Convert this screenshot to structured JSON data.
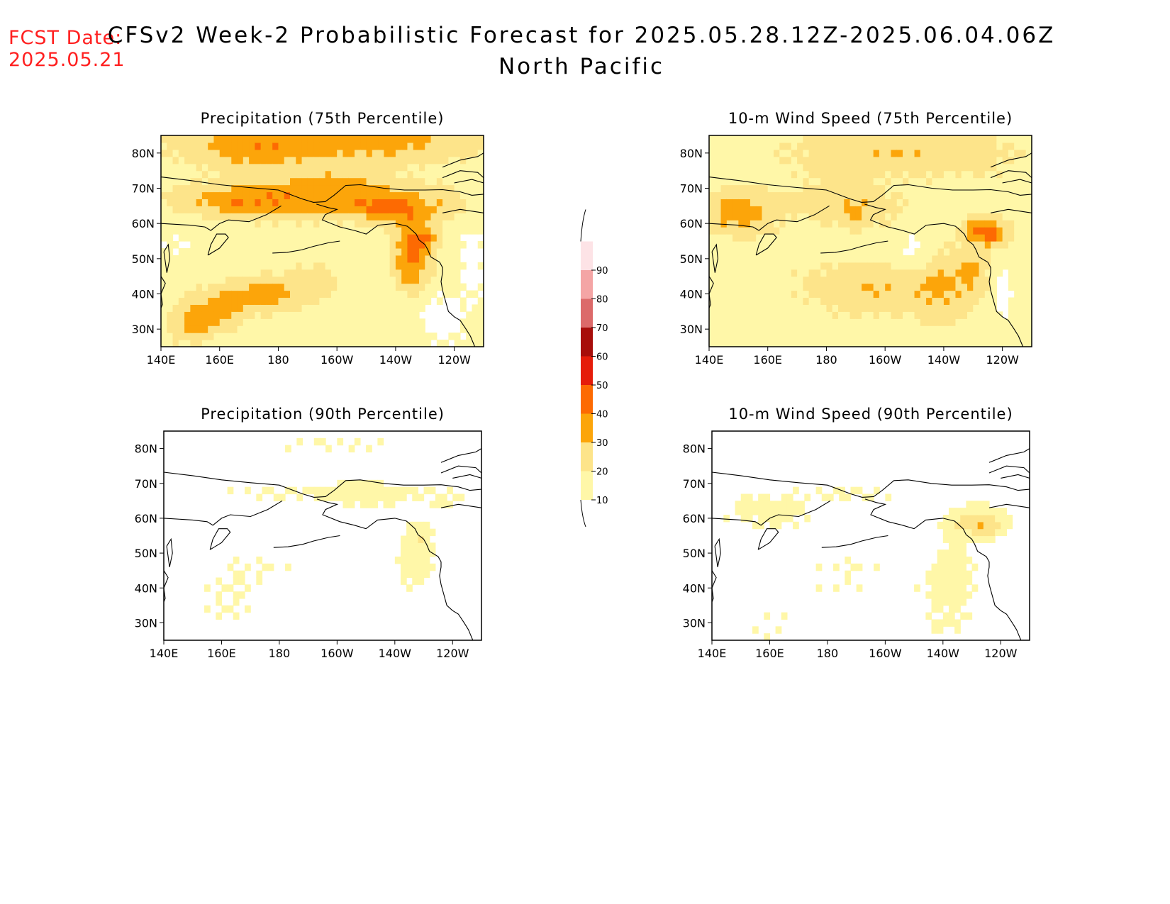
{
  "header": {
    "fcst_label": "FCST Date:",
    "fcst_date": "2025.05.21",
    "title": "CFSv2 Week-2 Probabilistic Forecast for 2025.05.28.12Z-2025.06.04.06Z",
    "subtitle": "North Pacific"
  },
  "panels": [
    {
      "title": "Precipitation (75th Percentile)",
      "field": "precip75"
    },
    {
      "title": "10-m Wind Speed (75th Percentile)",
      "field": "wind75"
    },
    {
      "title": "Precipitation (90th Percentile)",
      "field": "precip90"
    },
    {
      "title": "10-m Wind Speed (90th Percentile)",
      "field": "wind90"
    }
  ],
  "lon_ticks": [
    {
      "lon": 140,
      "label": "140E"
    },
    {
      "lon": 160,
      "label": "160E"
    },
    {
      "lon": 180,
      "label": "180"
    },
    {
      "lon": 200,
      "label": "160W"
    },
    {
      "lon": 220,
      "label": "140W"
    },
    {
      "lon": 240,
      "label": "120W"
    }
  ],
  "lat_ticks": [
    {
      "lat": 30,
      "label": "30N"
    },
    {
      "lat": 40,
      "label": "40N"
    },
    {
      "lat": 50,
      "label": "50N"
    },
    {
      "lat": 60,
      "label": "60N"
    },
    {
      "lat": 70,
      "label": "70N"
    },
    {
      "lat": 80,
      "label": "80N"
    }
  ],
  "map_extent": {
    "lon": [
      140,
      250
    ],
    "lat": [
      25,
      85
    ]
  },
  "colorbar": {
    "levels": [
      10,
      20,
      30,
      40,
      50,
      60,
      70,
      80,
      90
    ],
    "labels": [
      "10",
      "20",
      "30",
      "40",
      "50",
      "60",
      "70",
      "80",
      "90"
    ],
    "colors": [
      "#fff7a8",
      "#fde48a",
      "#fca50a",
      "#fd6a02",
      "#e51c0a",
      "#a70d0a",
      "#dc6a6a",
      "#f4a5a5",
      "#fde3e6"
    ]
  }
}
